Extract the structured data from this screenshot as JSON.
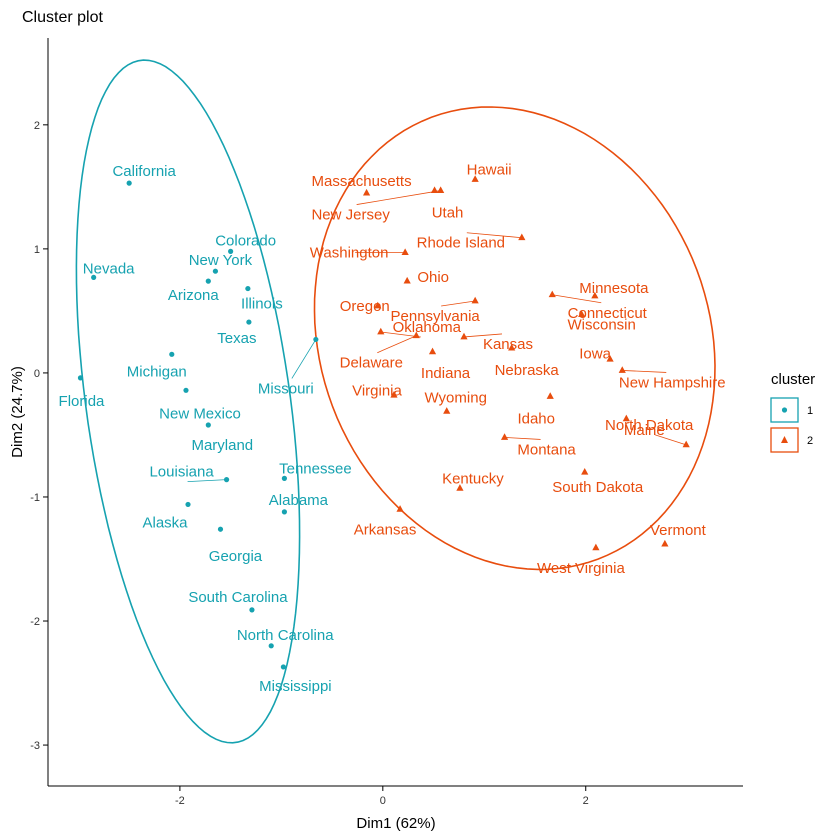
{
  "chart_data": {
    "type": "scatter",
    "title": "Cluster plot",
    "xlabel": "Dim1 (62%)",
    "ylabel": "Dim2 (24.7%)",
    "xlim": [
      -3.3,
      3.55
    ],
    "ylim": [
      -3.33,
      2.7
    ],
    "xticks": [
      -2,
      0,
      2
    ],
    "yticks": [
      -3,
      -2,
      -1,
      0,
      1,
      2
    ],
    "grid": false,
    "legend": {
      "title": "cluster",
      "placement": "right"
    },
    "series": [
      {
        "name": "1",
        "color": "#16A2B0",
        "marker": "circle",
        "ellipse": {
          "cx": -1.92,
          "cy": -0.23,
          "rx": 2.79,
          "ry": 1.0,
          "angle_deg": -79.85
        },
        "points": [
          {
            "label": "California",
            "x": -2.5,
            "y": 1.53
          },
          {
            "label": "Nevada",
            "x": -2.85,
            "y": 0.77
          },
          {
            "label": "Colorado",
            "x": -1.5,
            "y": 0.98
          },
          {
            "label": "New York",
            "x": -1.65,
            "y": 0.82
          },
          {
            "label": "Arizona",
            "x": -1.72,
            "y": 0.74
          },
          {
            "label": "Illinois",
            "x": -1.33,
            "y": 0.68
          },
          {
            "label": "Texas",
            "x": -1.32,
            "y": 0.41
          },
          {
            "label": "Missouri",
            "x": -0.66,
            "y": 0.27
          },
          {
            "label": "Michigan",
            "x": -2.08,
            "y": 0.15
          },
          {
            "label": "Florida",
            "x": -2.98,
            "y": -0.04
          },
          {
            "label": "New Mexico",
            "x": -1.94,
            "y": -0.14
          },
          {
            "label": "Maryland",
            "x": -1.72,
            "y": -0.42
          },
          {
            "label": "Tennessee",
            "x": -0.97,
            "y": -0.85
          },
          {
            "label": "Louisiana",
            "x": -1.54,
            "y": -0.86
          },
          {
            "label": "Alabama",
            "x": -0.97,
            "y": -1.12
          },
          {
            "label": "Alaska",
            "x": -1.92,
            "y": -1.06
          },
          {
            "label": "Georgia",
            "x": -1.6,
            "y": -1.26
          },
          {
            "label": "South Carolina",
            "x": -1.29,
            "y": -1.91
          },
          {
            "label": "North Carolina",
            "x": -1.1,
            "y": -2.2
          },
          {
            "label": "Mississippi",
            "x": -0.98,
            "y": -2.37
          }
        ]
      },
      {
        "name": "2",
        "color": "#E84D0E",
        "marker": "triangle",
        "ellipse": {
          "cx": 1.3,
          "cy": 0.28,
          "rx": 2.05,
          "ry": 1.78,
          "angle_deg": -33.0
        },
        "points": [
          {
            "label": "Hawaii",
            "x": 0.91,
            "y": 1.56
          },
          {
            "label": "Massachusetts",
            "x": -0.16,
            "y": 1.45
          },
          {
            "label": "Utah",
            "x": 0.51,
            "y": 1.47
          },
          {
            "label": "New Jersey",
            "x": 0.57,
            "y": 1.47
          },
          {
            "label": "Rhode Island",
            "x": 1.37,
            "y": 1.09
          },
          {
            "label": "Washington",
            "x": 0.22,
            "y": 0.97
          },
          {
            "label": "Ohio",
            "x": 0.24,
            "y": 0.74
          },
          {
            "label": "Connecticut",
            "x": 1.67,
            "y": 0.63
          },
          {
            "label": "Minnesota",
            "x": 2.09,
            "y": 0.62
          },
          {
            "label": "Pennsylvania",
            "x": 0.91,
            "y": 0.58
          },
          {
            "label": "Oregon",
            "x": -0.05,
            "y": 0.54
          },
          {
            "label": "Wisconsin",
            "x": 1.96,
            "y": 0.47
          },
          {
            "label": "Oklahoma",
            "x": -0.02,
            "y": 0.33
          },
          {
            "label": "Delaware",
            "x": 0.33,
            "y": 0.3
          },
          {
            "label": "Kansas",
            "x": 0.8,
            "y": 0.29
          },
          {
            "label": "Iowa",
            "x": 2.24,
            "y": 0.11
          },
          {
            "label": "Nebraska",
            "x": 1.27,
            "y": 0.2
          },
          {
            "label": "Indiana",
            "x": 0.49,
            "y": 0.17
          },
          {
            "label": "New Hampshire",
            "x": 2.36,
            "y": 0.02
          },
          {
            "label": "Virginia",
            "x": 0.11,
            "y": -0.18
          },
          {
            "label": "Idaho",
            "x": 1.65,
            "y": -0.19
          },
          {
            "label": "Maine",
            "x": 2.4,
            "y": -0.37
          },
          {
            "label": "Wyoming",
            "x": 0.63,
            "y": -0.31
          },
          {
            "label": "North Dakota",
            "x": 2.99,
            "y": -0.58
          },
          {
            "label": "Montana",
            "x": 1.2,
            "y": -0.52
          },
          {
            "label": "South Dakota",
            "x": 1.99,
            "y": -0.8
          },
          {
            "label": "Kentucky",
            "x": 0.76,
            "y": -0.93
          },
          {
            "label": "Arkansas",
            "x": 0.17,
            "y": -1.1
          },
          {
            "label": "Vermont",
            "x": 2.78,
            "y": -1.38
          },
          {
            "label": "West Virginia",
            "x": 2.1,
            "y": -1.41
          }
        ]
      }
    ]
  }
}
